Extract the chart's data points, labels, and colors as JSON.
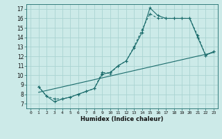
{
  "xlabel": "Humidex (Indice chaleur)",
  "bg_color": "#cceae8",
  "grid_color": "#aad4d2",
  "line_color": "#1a6b6b",
  "xlim": [
    -0.5,
    23.5
  ],
  "ylim": [
    6.5,
    17.5
  ],
  "xticks": [
    0,
    1,
    2,
    3,
    4,
    5,
    6,
    7,
    8,
    9,
    10,
    11,
    12,
    13,
    14,
    15,
    16,
    17,
    18,
    19,
    20,
    21,
    22,
    23
  ],
  "yticks": [
    7,
    8,
    9,
    10,
    11,
    12,
    13,
    14,
    15,
    16,
    17
  ],
  "line1_x": [
    1,
    2,
    3,
    4,
    5,
    6,
    7,
    8,
    9,
    10,
    11,
    12,
    13,
    14,
    15,
    16,
    17,
    18,
    19,
    20,
    21,
    22,
    23
  ],
  "line1_y": [
    8.8,
    7.8,
    7.2,
    7.5,
    7.7,
    8.0,
    8.3,
    8.6,
    10.1,
    10.3,
    11.0,
    11.5,
    12.9,
    14.5,
    17.1,
    16.3,
    16.0,
    16.0,
    16.0,
    16.0,
    14.0,
    12.1,
    12.5
  ],
  "line2_x": [
    1,
    2,
    3,
    4,
    5,
    6,
    7,
    8,
    9,
    10,
    11,
    12,
    13,
    14,
    15,
    16,
    17,
    18,
    19,
    20,
    21,
    22,
    23
  ],
  "line2_y": [
    8.8,
    7.8,
    7.5,
    7.5,
    7.7,
    8.0,
    8.3,
    8.6,
    10.3,
    10.2,
    11.0,
    11.5,
    13.0,
    14.8,
    16.5,
    16.0,
    16.0,
    16.0,
    16.0,
    16.0,
    14.2,
    12.1,
    12.5
  ],
  "line3_x": [
    1,
    23
  ],
  "line3_y": [
    8.2,
    12.4
  ]
}
